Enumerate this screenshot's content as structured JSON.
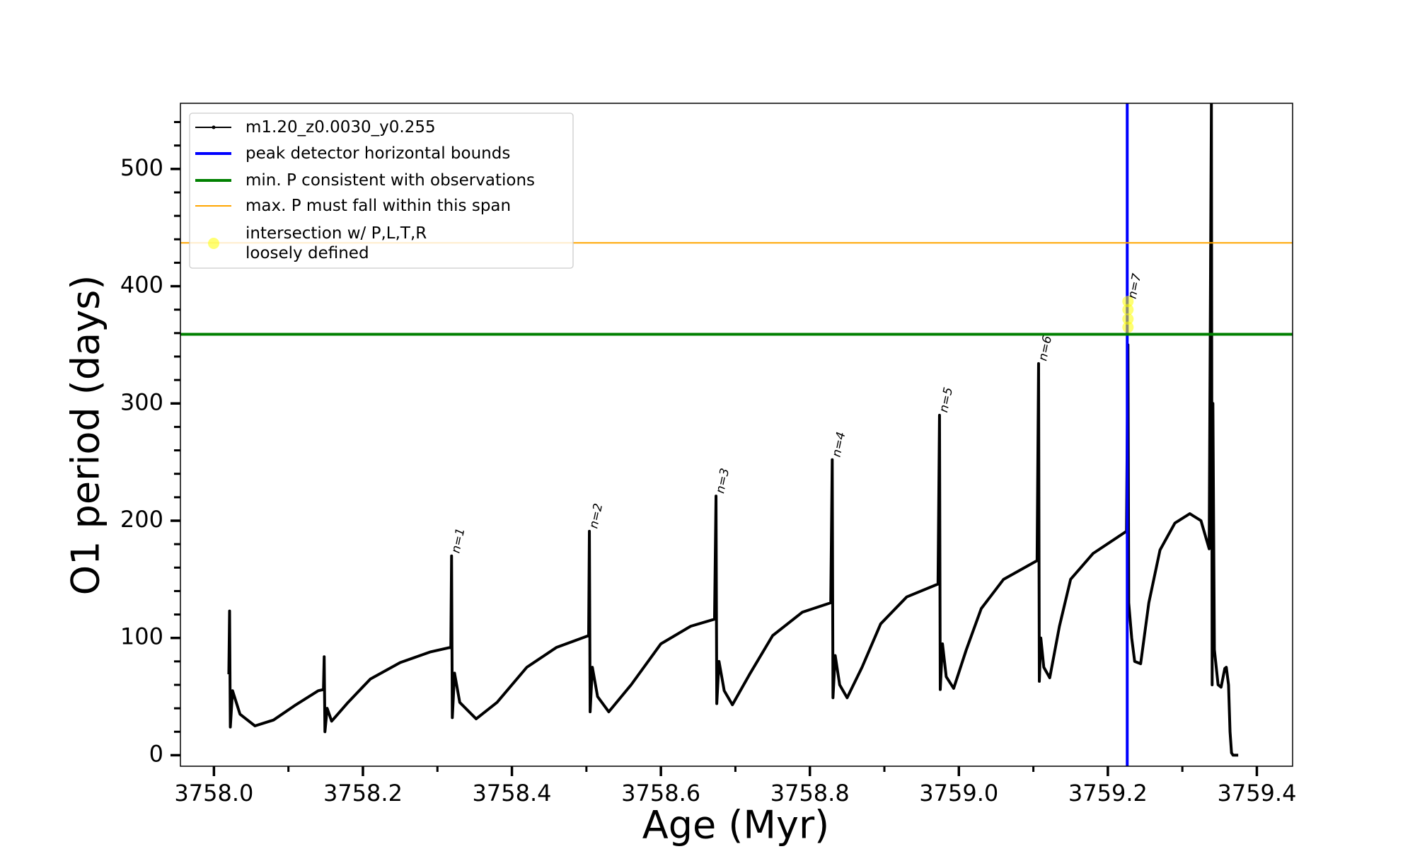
{
  "chart_data": {
    "type": "line",
    "x_label": "Age (Myr)",
    "y_label": "O1 period (days)",
    "xlim": [
      3757.955,
      3759.448
    ],
    "ylim": [
      -9.4,
      556
    ],
    "xticks": [
      {
        "value": 3758.0,
        "label": "3758.0"
      },
      3758.2,
      3758.4,
      3758.6,
      3758.8,
      {
        "value": 3759.0,
        "label": "3759.0"
      },
      3759.2,
      3759.4
    ],
    "xminorticks": [
      3758.1,
      3758.3,
      3758.5,
      3758.7,
      3758.9,
      3759.1,
      3759.3
    ],
    "yticks": [
      0,
      100,
      200,
      300,
      400,
      500
    ],
    "yminorticks": [
      20,
      40,
      60,
      80,
      120,
      140,
      160,
      180,
      220,
      240,
      260,
      280,
      320,
      340,
      360,
      380,
      420,
      440,
      460,
      480,
      520,
      540
    ],
    "legend": "upper left",
    "series": [
      {
        "name": "m1.20_z0.0030_y0.255",
        "color": "#000000",
        "marker": "dot",
        "x": [
          3758.02,
          3758.021,
          3758.022,
          3758.025,
          3758.035,
          3758.055,
          3758.08,
          3758.11,
          3758.14,
          3758.147,
          3758.148,
          3758.149,
          3758.152,
          3758.158,
          3758.18,
          3758.21,
          3758.25,
          3758.29,
          3758.318,
          3758.319,
          3758.32,
          3758.323,
          3758.33,
          3758.352,
          3758.38,
          3758.42,
          3758.46,
          3758.503,
          3758.504,
          3758.505,
          3758.508,
          3758.515,
          3758.53,
          3758.56,
          3758.6,
          3758.64,
          3758.672,
          3758.674,
          3758.675,
          3758.678,
          3758.685,
          3758.696,
          3758.72,
          3758.75,
          3758.79,
          3758.828,
          3758.83,
          3758.831,
          3758.834,
          3758.84,
          3758.85,
          3758.87,
          3758.895,
          3758.93,
          3758.972,
          3758.974,
          3758.975,
          3758.978,
          3758.983,
          3758.993,
          3759.01,
          3759.03,
          3759.06,
          3759.105,
          3759.107,
          3759.108,
          3759.11,
          3759.114,
          3759.122,
          3759.135,
          3759.15,
          3759.18,
          3759.225,
          3759.227,
          3759.228,
          3759.232,
          3759.236,
          3759.244,
          3759.255,
          3759.27,
          3759.29,
          3759.31,
          3759.325,
          3759.336,
          3759.339,
          3759.34,
          3759.341,
          3759.343,
          3759.348,
          3759.352,
          3759.357,
          3759.359,
          3759.362,
          3759.364,
          3759.366,
          3759.368,
          3759.375
        ],
        "values": [
          69,
          123,
          24,
          55,
          35,
          25,
          30,
          43,
          55,
          56,
          84,
          20,
          40,
          29,
          45,
          65,
          79,
          88,
          92,
          170,
          32,
          70,
          45,
          31,
          45,
          75,
          92,
          102,
          191,
          37,
          75,
          50,
          37,
          60,
          95,
          110,
          116,
          221,
          44,
          80,
          55,
          43,
          70,
          102,
          122,
          130,
          252,
          49,
          85,
          60,
          49,
          75,
          112,
          135,
          146,
          290,
          56,
          95,
          67,
          57,
          90,
          125,
          150,
          166,
          334,
          63,
          100,
          75,
          66,
          110,
          150,
          172,
          191,
          350,
          130,
          100,
          80,
          78,
          130,
          175,
          198,
          206,
          200,
          176,
          556,
          60,
          300,
          90,
          60,
          58,
          74,
          75,
          60,
          20,
          2,
          0,
          0
        ]
      },
      {
        "name": "peak detector horizontal bounds",
        "color": "#0000ff",
        "vline": 3759.226
      },
      {
        "name": "min. P consistent with observations",
        "color": "#008000",
        "hline": 359
      },
      {
        "name": "max. P must fall within this span",
        "color": "#ffa500",
        "hline": 437
      },
      {
        "name": "intersection w/ P,L,T,R\nloosely defined",
        "color": "#ffff00",
        "marker": "circle",
        "x": [
          3759.227,
          3759.227,
          3759.227,
          3759.227
        ],
        "values": [
          387,
          380,
          372,
          365
        ]
      }
    ],
    "annotations": [
      {
        "text": "n=1",
        "x": 3758.319,
        "y": 170
      },
      {
        "text": "n=2",
        "x": 3758.504,
        "y": 191
      },
      {
        "text": "n=3",
        "x": 3758.674,
        "y": 221
      },
      {
        "text": "n=4",
        "x": 3758.83,
        "y": 252
      },
      {
        "text": "n=5",
        "x": 3758.974,
        "y": 290
      },
      {
        "text": "n=6",
        "x": 3759.107,
        "y": 334
      },
      {
        "text": "n=7",
        "x": 3759.227,
        "y": 387
      }
    ]
  }
}
